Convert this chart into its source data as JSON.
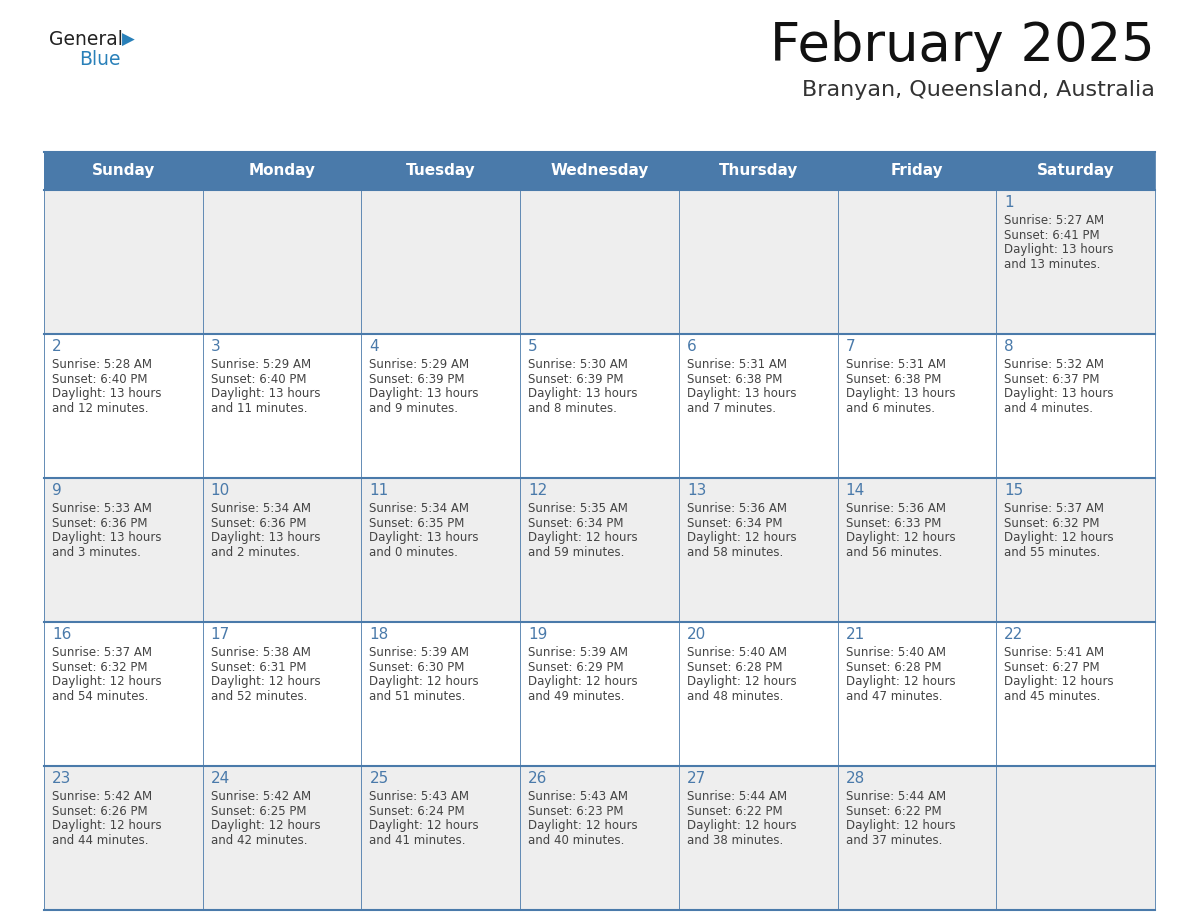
{
  "title": "February 2025",
  "subtitle": "Branyan, Queensland, Australia",
  "header_bg_color": "#4a7aaa",
  "header_text_color": "#FFFFFF",
  "day_names": [
    "Sunday",
    "Monday",
    "Tuesday",
    "Wednesday",
    "Thursday",
    "Friday",
    "Saturday"
  ],
  "odd_row_bg": "#EEEEEE",
  "even_row_bg": "#FFFFFF",
  "date_text_color": "#4a7aaa",
  "info_text_color": "#444444",
  "grid_line_color": "#4a7aaa",
  "logo_general_color": "#222222",
  "logo_blue_color": "#2980b9",
  "days": [
    {
      "day": 1,
      "col": 6,
      "row": 0,
      "sunrise": "5:27 AM",
      "sunset": "6:41 PM",
      "daylight_h": "13 hours",
      "daylight_m": "13 minutes"
    },
    {
      "day": 2,
      "col": 0,
      "row": 1,
      "sunrise": "5:28 AM",
      "sunset": "6:40 PM",
      "daylight_h": "13 hours",
      "daylight_m": "12 minutes"
    },
    {
      "day": 3,
      "col": 1,
      "row": 1,
      "sunrise": "5:29 AM",
      "sunset": "6:40 PM",
      "daylight_h": "13 hours",
      "daylight_m": "11 minutes"
    },
    {
      "day": 4,
      "col": 2,
      "row": 1,
      "sunrise": "5:29 AM",
      "sunset": "6:39 PM",
      "daylight_h": "13 hours",
      "daylight_m": "9 minutes"
    },
    {
      "day": 5,
      "col": 3,
      "row": 1,
      "sunrise": "5:30 AM",
      "sunset": "6:39 PM",
      "daylight_h": "13 hours",
      "daylight_m": "8 minutes"
    },
    {
      "day": 6,
      "col": 4,
      "row": 1,
      "sunrise": "5:31 AM",
      "sunset": "6:38 PM",
      "daylight_h": "13 hours",
      "daylight_m": "7 minutes"
    },
    {
      "day": 7,
      "col": 5,
      "row": 1,
      "sunrise": "5:31 AM",
      "sunset": "6:38 PM",
      "daylight_h": "13 hours",
      "daylight_m": "6 minutes"
    },
    {
      "day": 8,
      "col": 6,
      "row": 1,
      "sunrise": "5:32 AM",
      "sunset": "6:37 PM",
      "daylight_h": "13 hours",
      "daylight_m": "4 minutes"
    },
    {
      "day": 9,
      "col": 0,
      "row": 2,
      "sunrise": "5:33 AM",
      "sunset": "6:36 PM",
      "daylight_h": "13 hours",
      "daylight_m": "3 minutes"
    },
    {
      "day": 10,
      "col": 1,
      "row": 2,
      "sunrise": "5:34 AM",
      "sunset": "6:36 PM",
      "daylight_h": "13 hours",
      "daylight_m": "2 minutes"
    },
    {
      "day": 11,
      "col": 2,
      "row": 2,
      "sunrise": "5:34 AM",
      "sunset": "6:35 PM",
      "daylight_h": "13 hours",
      "daylight_m": "0 minutes"
    },
    {
      "day": 12,
      "col": 3,
      "row": 2,
      "sunrise": "5:35 AM",
      "sunset": "6:34 PM",
      "daylight_h": "12 hours",
      "daylight_m": "59 minutes"
    },
    {
      "day": 13,
      "col": 4,
      "row": 2,
      "sunrise": "5:36 AM",
      "sunset": "6:34 PM",
      "daylight_h": "12 hours",
      "daylight_m": "58 minutes"
    },
    {
      "day": 14,
      "col": 5,
      "row": 2,
      "sunrise": "5:36 AM",
      "sunset": "6:33 PM",
      "daylight_h": "12 hours",
      "daylight_m": "56 minutes"
    },
    {
      "day": 15,
      "col": 6,
      "row": 2,
      "sunrise": "5:37 AM",
      "sunset": "6:32 PM",
      "daylight_h": "12 hours",
      "daylight_m": "55 minutes"
    },
    {
      "day": 16,
      "col": 0,
      "row": 3,
      "sunrise": "5:37 AM",
      "sunset": "6:32 PM",
      "daylight_h": "12 hours",
      "daylight_m": "54 minutes"
    },
    {
      "day": 17,
      "col": 1,
      "row": 3,
      "sunrise": "5:38 AM",
      "sunset": "6:31 PM",
      "daylight_h": "12 hours",
      "daylight_m": "52 minutes"
    },
    {
      "day": 18,
      "col": 2,
      "row": 3,
      "sunrise": "5:39 AM",
      "sunset": "6:30 PM",
      "daylight_h": "12 hours",
      "daylight_m": "51 minutes"
    },
    {
      "day": 19,
      "col": 3,
      "row": 3,
      "sunrise": "5:39 AM",
      "sunset": "6:29 PM",
      "daylight_h": "12 hours",
      "daylight_m": "49 minutes"
    },
    {
      "day": 20,
      "col": 4,
      "row": 3,
      "sunrise": "5:40 AM",
      "sunset": "6:28 PM",
      "daylight_h": "12 hours",
      "daylight_m": "48 minutes"
    },
    {
      "day": 21,
      "col": 5,
      "row": 3,
      "sunrise": "5:40 AM",
      "sunset": "6:28 PM",
      "daylight_h": "12 hours",
      "daylight_m": "47 minutes"
    },
    {
      "day": 22,
      "col": 6,
      "row": 3,
      "sunrise": "5:41 AM",
      "sunset": "6:27 PM",
      "daylight_h": "12 hours",
      "daylight_m": "45 minutes"
    },
    {
      "day": 23,
      "col": 0,
      "row": 4,
      "sunrise": "5:42 AM",
      "sunset": "6:26 PM",
      "daylight_h": "12 hours",
      "daylight_m": "44 minutes"
    },
    {
      "day": 24,
      "col": 1,
      "row": 4,
      "sunrise": "5:42 AM",
      "sunset": "6:25 PM",
      "daylight_h": "12 hours",
      "daylight_m": "42 minutes"
    },
    {
      "day": 25,
      "col": 2,
      "row": 4,
      "sunrise": "5:43 AM",
      "sunset": "6:24 PM",
      "daylight_h": "12 hours",
      "daylight_m": "41 minutes"
    },
    {
      "day": 26,
      "col": 3,
      "row": 4,
      "sunrise": "5:43 AM",
      "sunset": "6:23 PM",
      "daylight_h": "12 hours",
      "daylight_m": "40 minutes"
    },
    {
      "day": 27,
      "col": 4,
      "row": 4,
      "sunrise": "5:44 AM",
      "sunset": "6:22 PM",
      "daylight_h": "12 hours",
      "daylight_m": "38 minutes"
    },
    {
      "day": 28,
      "col": 5,
      "row": 4,
      "sunrise": "5:44 AM",
      "sunset": "6:22 PM",
      "daylight_h": "12 hours",
      "daylight_m": "37 minutes"
    }
  ]
}
